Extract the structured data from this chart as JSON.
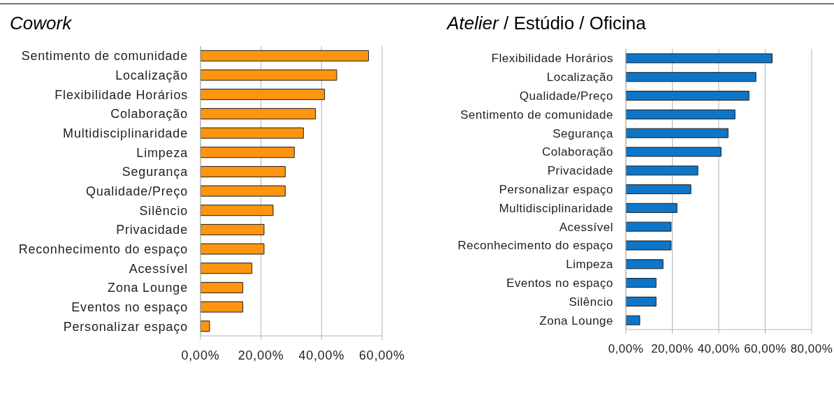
{
  "chart_data": [
    {
      "type": "bar",
      "orientation": "horizontal",
      "title": "Cowork",
      "categories": [
        "Sentimento de comunidade",
        "Localização",
        "Flexibilidade Horários",
        "Colaboração",
        "Multidisciplinaridade",
        "Limpeza",
        "Segurança",
        "Qualidade/Preço",
        "Silêncio",
        "Privacidade",
        "Reconhecimento do espaço",
        "Acessível",
        "Zona Lounge",
        "Eventos no espaço",
        "Personalizar espaço"
      ],
      "values": [
        55.5,
        45,
        41,
        38,
        34,
        31,
        28,
        28,
        24,
        21,
        21,
        17,
        14,
        14,
        3
      ],
      "color": "#ff950e",
      "xlim": [
        0,
        60
      ],
      "xticks": [
        {
          "value": 0,
          "label": "0,00%"
        },
        {
          "value": 20,
          "label": "20,00%"
        },
        {
          "value": 40,
          "label": "40,00%"
        },
        {
          "value": 60,
          "label": "60,00%"
        }
      ],
      "grid": "x"
    },
    {
      "type": "bar",
      "orientation": "horizontal",
      "title": "Atelier / Estúdio / Oficina",
      "categories": [
        "Flexibilidade Horários",
        "Localização",
        "Qualidade/Preço",
        "Sentimento de comunidade",
        "Segurança",
        "Colaboração",
        "Privacidade",
        "Personalizar espaço",
        "Multidisciplinaridade",
        "Acessível",
        "Reconhecimento do espaço",
        "Limpeza",
        "Eventos no espaço",
        "Silêncio",
        "Zona Lounge"
      ],
      "values": [
        63,
        56,
        53,
        47,
        44,
        41,
        31,
        28,
        22,
        19.5,
        19.5,
        16,
        13,
        13,
        6
      ],
      "color": "#0e76c8",
      "xlim": [
        0,
        80
      ],
      "xticks": [
        {
          "value": 0,
          "label": "0,00%"
        },
        {
          "value": 20,
          "label": "20,00%"
        },
        {
          "value": 40,
          "label": "40,00%"
        },
        {
          "value": 60,
          "label": "60,00%"
        },
        {
          "value": 80,
          "label": "80,00%"
        }
      ],
      "grid": "x"
    }
  ]
}
